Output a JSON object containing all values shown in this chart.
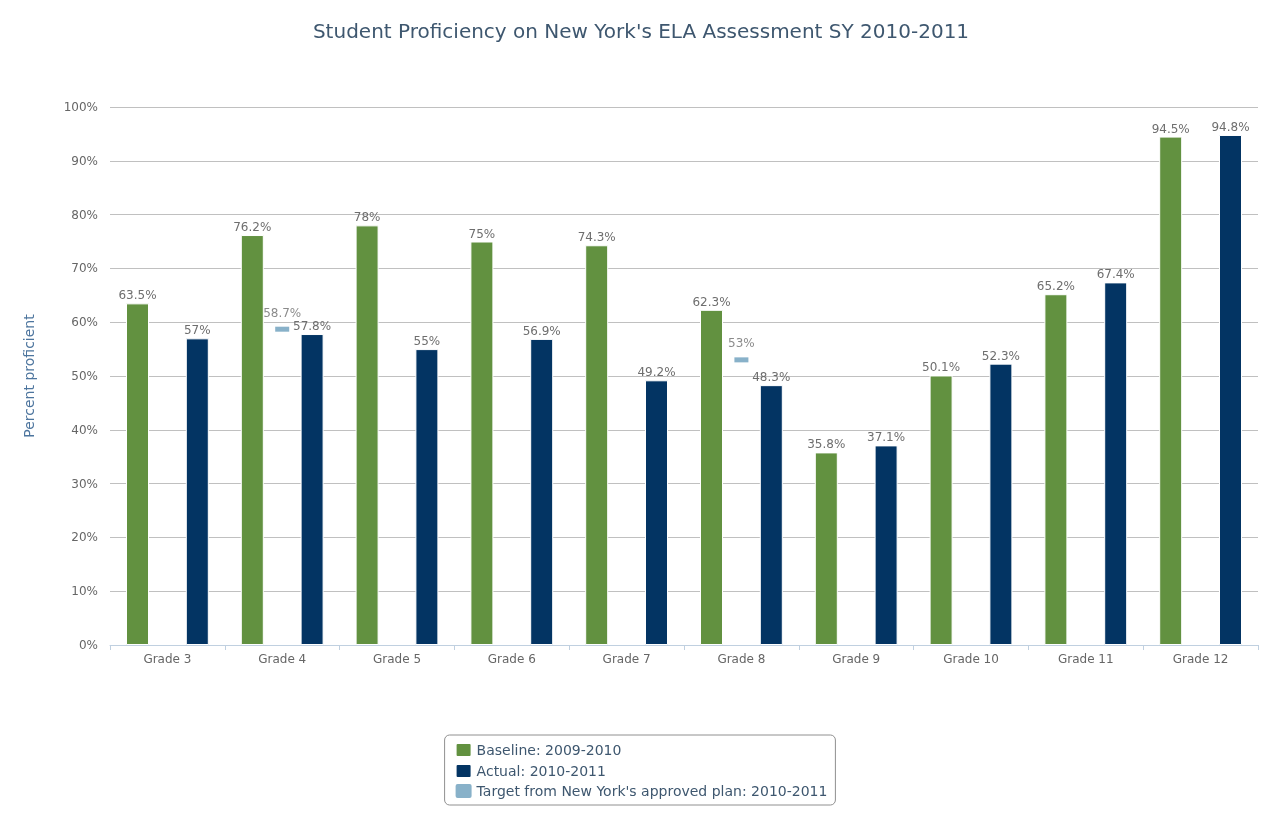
{
  "chart_data": {
    "type": "bar",
    "title": "Student Proficiency on New York's ELA Assessment SY 2010-2011",
    "ylabel": "Percent proficient",
    "categories": [
      "Grade 3",
      "Grade 4",
      "Grade 5",
      "Grade 6",
      "Grade 7",
      "Grade 8",
      "Grade 9",
      "Grade 10",
      "Grade 11",
      "Grade 12"
    ],
    "series": [
      {
        "name": "Baseline: 2009-2010",
        "color": "#629140",
        "values": [
          63.5,
          76.2,
          78,
          75,
          74.3,
          62.3,
          35.8,
          50.1,
          65.2,
          94.5
        ],
        "value_labels": [
          "63.5%",
          "76.2%",
          "78%",
          "75%",
          "74.3%",
          "62.3%",
          "35.8%",
          "50.1%",
          "65.2%",
          "94.5%"
        ]
      },
      {
        "name": "Actual: 2010-2011",
        "color": "#033463",
        "values": [
          57,
          57.8,
          55,
          56.9,
          49.2,
          48.3,
          37.1,
          52.3,
          67.4,
          94.8
        ],
        "value_labels": [
          "57%",
          "57.8%",
          "55%",
          "56.9%",
          "49.2%",
          "48.3%",
          "37.1%",
          "52.3%",
          "67.4%",
          "94.8%"
        ]
      },
      {
        "name": "Target from New York's approved plan: 2010-2011",
        "type": "scatter",
        "color": "#6a9dbc",
        "x": [
          "Grade 4",
          "Grade 8"
        ],
        "values": [
          58.7,
          53
        ],
        "value_labels": [
          "58.7%",
          "53%"
        ]
      }
    ],
    "ylim": [
      0,
      100
    ],
    "yticks": [
      {
        "value": 0,
        "label": "0%"
      },
      {
        "value": 10,
        "label": "10%"
      },
      {
        "value": 20,
        "label": "20%"
      },
      {
        "value": 30,
        "label": "30%"
      },
      {
        "value": 40,
        "label": "40%"
      },
      {
        "value": 50,
        "label": "50%"
      },
      {
        "value": 60,
        "label": "60%"
      },
      {
        "value": 70,
        "label": "70%"
      },
      {
        "value": 80,
        "label": "80%"
      },
      {
        "value": 90,
        "label": "90%"
      },
      {
        "value": 100,
        "label": "100%"
      }
    ],
    "grid": "y",
    "legend": "bottom"
  }
}
